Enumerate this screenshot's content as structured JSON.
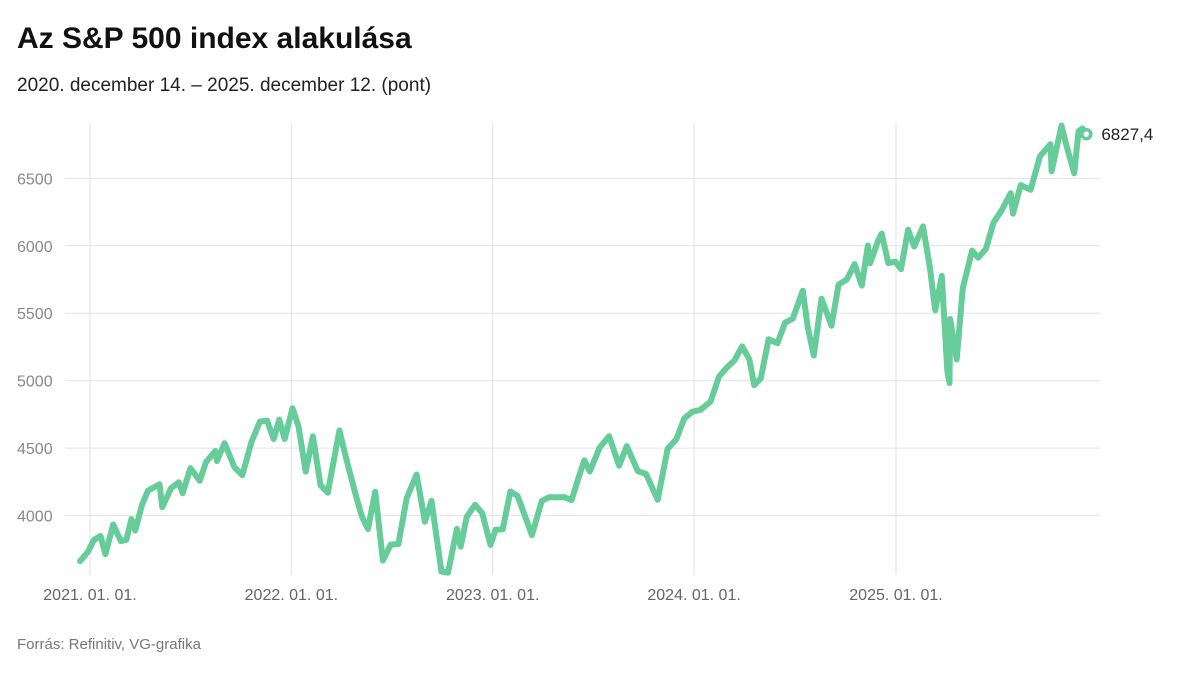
{
  "title": "Az S&P 500 index alakulása",
  "subtitle": "2020. december 14. – 2025. december 12. (pont)",
  "source": "Forrás: Refinitiv, VG-grafika",
  "chart_data": {
    "type": "line",
    "title": "Az S&P 500 index alakulása",
    "xlabel": "",
    "ylabel": "",
    "ylim": [
      3560,
      6910
    ],
    "yticks": [
      4000,
      4500,
      5000,
      5500,
      6000,
      6500
    ],
    "ytick_labels": [
      "4000",
      "4500",
      "5000",
      "5500",
      "6000",
      "6500"
    ],
    "xticks": [
      "2021-01-01",
      "2022-01-01",
      "2023-01-01",
      "2024-01-01",
      "2025-01-01"
    ],
    "xtick_labels": [
      "2021. 01. 01.",
      "2022. 01. 01.",
      "2023. 01. 01.",
      "2024. 01. 01.",
      "2025. 01. 01."
    ],
    "grid": true,
    "line_color": "#66cc99",
    "end_label": "6827,4",
    "series": [
      {
        "points": [
          [
            "2020-12-14",
            3663
          ],
          [
            "2020-12-28",
            3730
          ],
          [
            "2021-01-08",
            3820
          ],
          [
            "2021-01-20",
            3850
          ],
          [
            "2021-01-29",
            3714
          ],
          [
            "2021-02-12",
            3934
          ],
          [
            "2021-02-26",
            3811
          ],
          [
            "2021-03-08",
            3821
          ],
          [
            "2021-03-17",
            3974
          ],
          [
            "2021-03-24",
            3889
          ],
          [
            "2021-04-05",
            4077
          ],
          [
            "2021-04-16",
            4185
          ],
          [
            "2021-05-07",
            4232
          ],
          [
            "2021-05-12",
            4063
          ],
          [
            "2021-05-28",
            4204
          ],
          [
            "2021-06-11",
            4247
          ],
          [
            "2021-06-18",
            4166
          ],
          [
            "2021-07-02",
            4352
          ],
          [
            "2021-07-19",
            4258
          ],
          [
            "2021-07-30",
            4395
          ],
          [
            "2021-08-16",
            4479
          ],
          [
            "2021-08-19",
            4405
          ],
          [
            "2021-09-02",
            4537
          ],
          [
            "2021-09-20",
            4358
          ],
          [
            "2021-10-04",
            4300
          ],
          [
            "2021-10-21",
            4549
          ],
          [
            "2021-11-05",
            4697
          ],
          [
            "2021-11-18",
            4704
          ],
          [
            "2021-11-30",
            4567
          ],
          [
            "2021-12-10",
            4712
          ],
          [
            "2021-12-20",
            4568
          ],
          [
            "2022-01-03",
            4796
          ],
          [
            "2022-01-14",
            4662
          ],
          [
            "2022-01-27",
            4326
          ],
          [
            "2022-02-09",
            4587
          ],
          [
            "2022-02-23",
            4225
          ],
          [
            "2022-03-08",
            4170
          ],
          [
            "2022-03-29",
            4631
          ],
          [
            "2022-04-12",
            4397
          ],
          [
            "2022-04-29",
            4132
          ],
          [
            "2022-05-09",
            3991
          ],
          [
            "2022-05-20",
            3901
          ],
          [
            "2022-06-02",
            4177
          ],
          [
            "2022-06-16",
            3667
          ],
          [
            "2022-06-30",
            3785
          ],
          [
            "2022-07-14",
            3790
          ],
          [
            "2022-07-29",
            4130
          ],
          [
            "2022-08-16",
            4305
          ],
          [
            "2022-08-31",
            3955
          ],
          [
            "2022-09-12",
            4110
          ],
          [
            "2022-09-30",
            3586
          ],
          [
            "2022-10-12",
            3577
          ],
          [
            "2022-10-28",
            3901
          ],
          [
            "2022-11-04",
            3770
          ],
          [
            "2022-11-15",
            3992
          ],
          [
            "2022-11-30",
            4080
          ],
          [
            "2022-12-13",
            4019
          ],
          [
            "2022-12-28",
            3783
          ],
          [
            "2023-01-06",
            3895
          ],
          [
            "2023-01-19",
            3899
          ],
          [
            "2023-02-02",
            4179
          ],
          [
            "2023-02-15",
            4147
          ],
          [
            "2023-03-02",
            3981
          ],
          [
            "2023-03-13",
            3855
          ],
          [
            "2023-03-31",
            4109
          ],
          [
            "2023-04-14",
            4137
          ],
          [
            "2023-04-27",
            4135
          ],
          [
            "2023-05-10",
            4137
          ],
          [
            "2023-05-24",
            4115
          ],
          [
            "2023-06-05",
            4273
          ],
          [
            "2023-06-16",
            4409
          ],
          [
            "2023-06-26",
            4328
          ],
          [
            "2023-07-14",
            4505
          ],
          [
            "2023-07-31",
            4589
          ],
          [
            "2023-08-18",
            4370
          ],
          [
            "2023-09-01",
            4515
          ],
          [
            "2023-09-21",
            4330
          ],
          [
            "2023-10-06",
            4308
          ],
          [
            "2023-10-27",
            4117
          ],
          [
            "2023-11-14",
            4495
          ],
          [
            "2023-11-30",
            4567
          ],
          [
            "2023-12-14",
            4719
          ],
          [
            "2023-12-29",
            4770
          ],
          [
            "2024-01-12",
            4783
          ],
          [
            "2024-01-31",
            4845
          ],
          [
            "2024-02-15",
            5029
          ],
          [
            "2024-02-29",
            5096
          ],
          [
            "2024-03-14",
            5150
          ],
          [
            "2024-03-28",
            5254
          ],
          [
            "2024-04-10",
            5160
          ],
          [
            "2024-04-19",
            4967
          ],
          [
            "2024-05-01",
            5018
          ],
          [
            "2024-05-15",
            5308
          ],
          [
            "2024-05-31",
            5277
          ],
          [
            "2024-06-14",
            5431
          ],
          [
            "2024-06-28",
            5460
          ],
          [
            "2024-07-16",
            5667
          ],
          [
            "2024-07-25",
            5399
          ],
          [
            "2024-08-05",
            5186
          ],
          [
            "2024-08-19",
            5608
          ],
          [
            "2024-09-06",
            5408
          ],
          [
            "2024-09-19",
            5713
          ],
          [
            "2024-10-04",
            5751
          ],
          [
            "2024-10-18",
            5864
          ],
          [
            "2024-10-31",
            5705
          ],
          [
            "2024-11-11",
            6001
          ],
          [
            "2024-11-15",
            5870
          ],
          [
            "2024-11-29",
            6032
          ],
          [
            "2024-12-06",
            6090
          ],
          [
            "2024-12-18",
            5872
          ],
          [
            "2024-12-31",
            5882
          ],
          [
            "2025-01-10",
            5827
          ],
          [
            "2025-01-23",
            6119
          ],
          [
            "2025-02-03",
            5995
          ],
          [
            "2025-02-19",
            6144
          ],
          [
            "2025-03-03",
            5850
          ],
          [
            "2025-03-13",
            5522
          ],
          [
            "2025-03-25",
            5777
          ],
          [
            "2025-04-04",
            5074
          ],
          [
            "2025-04-08",
            4983
          ],
          [
            "2025-04-09",
            5457
          ],
          [
            "2025-04-21",
            5158
          ],
          [
            "2025-05-02",
            5687
          ],
          [
            "2025-05-19",
            5964
          ],
          [
            "2025-05-30",
            5912
          ],
          [
            "2025-06-13",
            5977
          ],
          [
            "2025-06-27",
            6173
          ],
          [
            "2025-07-11",
            6260
          ],
          [
            "2025-07-28",
            6390
          ],
          [
            "2025-08-01",
            6238
          ],
          [
            "2025-08-15",
            6450
          ],
          [
            "2025-09-02",
            6415
          ],
          [
            "2025-09-19",
            6664
          ],
          [
            "2025-10-08",
            6753
          ],
          [
            "2025-10-10",
            6552
          ],
          [
            "2025-10-28",
            6890
          ],
          [
            "2025-11-07",
            6728
          ],
          [
            "2025-11-20",
            6538
          ],
          [
            "2025-11-28",
            6849
          ],
          [
            "2025-12-05",
            6870
          ],
          [
            "2025-12-12",
            6827.4
          ]
        ]
      }
    ]
  }
}
